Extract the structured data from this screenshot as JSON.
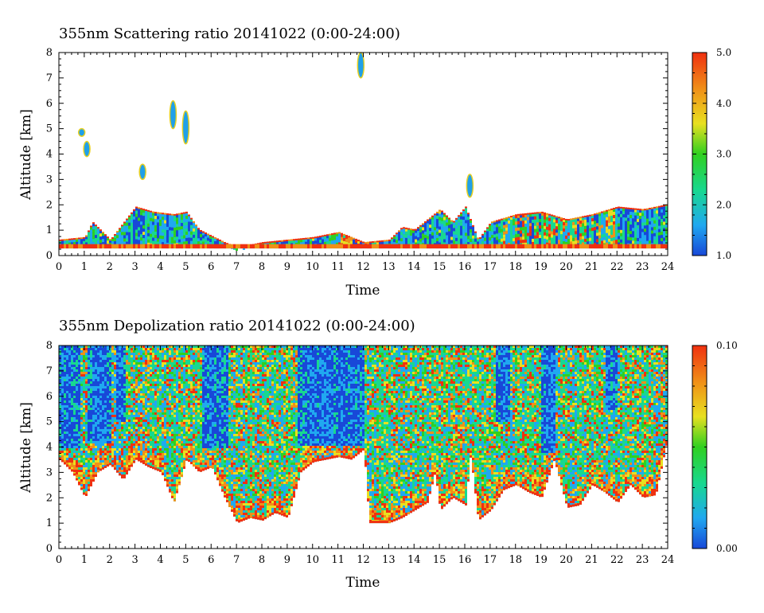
{
  "chart_data": [
    {
      "type": "heatmap",
      "title": "355nm Scattering ratio  20141022 (0:00-24:00)",
      "xlabel": "Time",
      "ylabel": "Altitude [km]",
      "xlim": [
        0,
        24
      ],
      "ylim": [
        0,
        8
      ],
      "x_ticks": [
        0,
        1,
        2,
        3,
        4,
        5,
        6,
        7,
        8,
        9,
        10,
        11,
        12,
        13,
        14,
        15,
        16,
        17,
        18,
        19,
        20,
        21,
        22,
        23,
        24
      ],
      "y_ticks": [
        0,
        1,
        2,
        3,
        4,
        5,
        6,
        7,
        8
      ],
      "colorbar": {
        "min": 1.0,
        "max": 5.0,
        "ticks": [
          "1.0",
          "2.0",
          "3.0",
          "4.0",
          "5.0"
        ],
        "colors": [
          "#1848d8",
          "#20a8f0",
          "#18d890",
          "#30d020",
          "#e8e020",
          "#f09018",
          "#f03010"
        ]
      },
      "layer_top_km": [
        {
          "t": 0,
          "z": 0.6
        },
        {
          "t": 1,
          "z": 0.7
        },
        {
          "t": 1.3,
          "z": 1.3
        },
        {
          "t": 2,
          "z": 0.6
        },
        {
          "t": 3,
          "z": 1.9
        },
        {
          "t": 3.7,
          "z": 1.7
        },
        {
          "t": 4.5,
          "z": 1.6
        },
        {
          "t": 5,
          "z": 1.7
        },
        {
          "t": 5.5,
          "z": 1.0
        },
        {
          "t": 6.5,
          "z": 0.5
        },
        {
          "t": 7,
          "z": 0.3
        },
        {
          "t": 8,
          "z": 0.5
        },
        {
          "t": 9,
          "z": 0.6
        },
        {
          "t": 10,
          "z": 0.7
        },
        {
          "t": 11,
          "z": 0.9
        },
        {
          "t": 12,
          "z": 0.5
        },
        {
          "t": 13,
          "z": 0.6
        },
        {
          "t": 13.5,
          "z": 1.1
        },
        {
          "t": 14,
          "z": 1.0
        },
        {
          "t": 15,
          "z": 1.8
        },
        {
          "t": 15.5,
          "z": 1.3
        },
        {
          "t": 16,
          "z": 1.9
        },
        {
          "t": 16.5,
          "z": 0.6
        },
        {
          "t": 17,
          "z": 1.3
        },
        {
          "t": 18,
          "z": 1.6
        },
        {
          "t": 19,
          "z": 1.7
        },
        {
          "t": 20,
          "z": 1.4
        },
        {
          "t": 21,
          "z": 1.6
        },
        {
          "t": 22,
          "z": 1.9
        },
        {
          "t": 23,
          "z": 1.8
        },
        {
          "t": 24,
          "z": 2.0
        }
      ],
      "features": [
        {
          "t": 0.9,
          "z_bottom": 4.7,
          "z_top": 5.0
        },
        {
          "t": 1.1,
          "z_bottom": 3.9,
          "z_top": 4.5
        },
        {
          "t": 3.3,
          "z_bottom": 3.0,
          "z_top": 3.6
        },
        {
          "t": 4.5,
          "z_bottom": 5.0,
          "z_top": 6.1
        },
        {
          "t": 5.0,
          "z_bottom": 4.4,
          "z_top": 5.7
        },
        {
          "t": 11.9,
          "z_bottom": 7.0,
          "z_top": 8.0
        },
        {
          "t": 16.2,
          "z_bottom": 2.3,
          "z_top": 3.2
        }
      ]
    },
    {
      "type": "heatmap",
      "title": "355nm Depolization ratio  20141022 (0:00-24:00)",
      "xlabel": "Time",
      "ylabel": "Altitude [km]",
      "xlim": [
        0,
        24
      ],
      "ylim": [
        0,
        8
      ],
      "x_ticks": [
        0,
        1,
        2,
        3,
        4,
        5,
        6,
        7,
        8,
        9,
        10,
        11,
        12,
        13,
        14,
        15,
        16,
        17,
        18,
        19,
        20,
        21,
        22,
        23,
        24
      ],
      "y_ticks": [
        0,
        1,
        2,
        3,
        4,
        5,
        6,
        7,
        8
      ],
      "colorbar": {
        "min": 0.0,
        "max": 0.1,
        "ticks": [
          "0.00",
          "0.10"
        ],
        "colors": [
          "#1848d8",
          "#20a8f0",
          "#18d890",
          "#30d020",
          "#e8e020",
          "#f09018",
          "#f03010"
        ]
      },
      "data_bottom_km": [
        {
          "t": 0,
          "z": 3.5
        },
        {
          "t": 0.5,
          "z": 3.0
        },
        {
          "t": 1,
          "z": 2.0
        },
        {
          "t": 1.5,
          "z": 3.0
        },
        {
          "t": 2,
          "z": 3.3
        },
        {
          "t": 2.5,
          "z": 2.7
        },
        {
          "t": 3,
          "z": 3.5
        },
        {
          "t": 3.5,
          "z": 3.2
        },
        {
          "t": 4,
          "z": 3.0
        },
        {
          "t": 4.5,
          "z": 1.8
        },
        {
          "t": 5,
          "z": 3.5
        },
        {
          "t": 5.5,
          "z": 3.0
        },
        {
          "t": 6,
          "z": 3.2
        },
        {
          "t": 6.5,
          "z": 2.0
        },
        {
          "t": 7,
          "z": 1.0
        },
        {
          "t": 7.5,
          "z": 1.2
        },
        {
          "t": 8,
          "z": 1.1
        },
        {
          "t": 8.5,
          "z": 1.4
        },
        {
          "t": 9,
          "z": 1.2
        },
        {
          "t": 9.5,
          "z": 3.0
        },
        {
          "t": 10,
          "z": 3.4
        },
        {
          "t": 10.5,
          "z": 3.5
        },
        {
          "t": 11,
          "z": 3.6
        },
        {
          "t": 11.5,
          "z": 3.5
        },
        {
          "t": 12,
          "z": 3.9
        },
        {
          "t": 12.2,
          "z": 1.0
        },
        {
          "t": 13,
          "z": 1.0
        },
        {
          "t": 13.5,
          "z": 1.2
        },
        {
          "t": 14,
          "z": 1.5
        },
        {
          "t": 14.5,
          "z": 1.8
        },
        {
          "t": 14.8,
          "z": 3.0
        },
        {
          "t": 15,
          "z": 1.5
        },
        {
          "t": 15.5,
          "z": 2.0
        },
        {
          "t": 16,
          "z": 1.7
        },
        {
          "t": 16.2,
          "z": 3.7
        },
        {
          "t": 16.5,
          "z": 1.1
        },
        {
          "t": 17,
          "z": 1.5
        },
        {
          "t": 17.5,
          "z": 2.3
        },
        {
          "t": 18,
          "z": 2.5
        },
        {
          "t": 18.5,
          "z": 2.2
        },
        {
          "t": 19,
          "z": 2.0
        },
        {
          "t": 19.5,
          "z": 3.5
        },
        {
          "t": 20,
          "z": 1.6
        },
        {
          "t": 20.5,
          "z": 1.7
        },
        {
          "t": 21,
          "z": 2.5
        },
        {
          "t": 21.5,
          "z": 2.2
        },
        {
          "t": 22,
          "z": 1.8
        },
        {
          "t": 22.5,
          "z": 2.5
        },
        {
          "t": 23,
          "z": 2.0
        },
        {
          "t": 23.5,
          "z": 2.1
        },
        {
          "t": 24,
          "z": 4.5
        }
      ],
      "low_depol_columns": [
        {
          "t0": 0.0,
          "t1": 0.8,
          "z_bottom": 4.0
        },
        {
          "t0": 1.1,
          "t1": 2.0,
          "z_bottom": 4.2
        },
        {
          "t0": 2.2,
          "t1": 2.6,
          "z_bottom": 5.0
        },
        {
          "t0": 5.6,
          "t1": 6.6,
          "z_bottom": 4.0
        },
        {
          "t0": 9.4,
          "t1": 12.0,
          "z_bottom": 4.1
        },
        {
          "t0": 17.2,
          "t1": 17.7,
          "z_bottom": 5.0
        },
        {
          "t0": 19.0,
          "t1": 19.5,
          "z_bottom": 3.8
        },
        {
          "t0": 21.5,
          "t1": 22.0,
          "z_bottom": 5.5
        }
      ]
    }
  ]
}
